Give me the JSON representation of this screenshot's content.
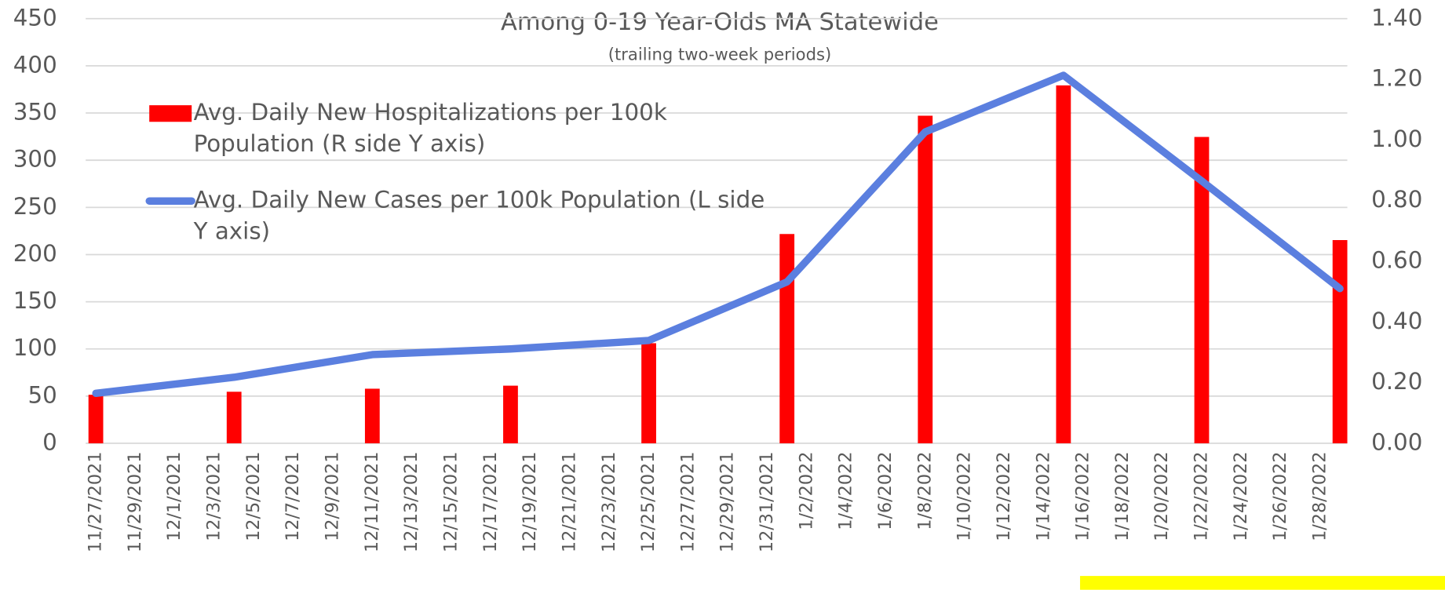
{
  "chart_data": {
    "type": "bar_line",
    "title": "Among 0-19 Year-Olds MA Statewide",
    "subtitle": "(trailing two-week periods)",
    "x": [
      "11/27/2021",
      "12/4/2021",
      "12/11/2021",
      "12/18/2021",
      "12/25/2021",
      "1/1/2022",
      "1/8/2022",
      "1/15/2022",
      "1/22/2022",
      "1/29/2022"
    ],
    "xticks": [
      "11/27/2021",
      "11/29/2021",
      "12/1/2021",
      "12/3/2021",
      "12/5/2021",
      "12/7/2021",
      "12/9/2021",
      "12/11/2021",
      "12/13/2021",
      "12/15/2021",
      "12/17/2021",
      "12/19/2021",
      "12/21/2021",
      "12/23/2021",
      "12/25/2021",
      "12/27/2021",
      "12/29/2021",
      "12/31/2021",
      "1/2/2022",
      "1/4/2022",
      "1/6/2022",
      "1/8/2022",
      "1/10/2022",
      "1/12/2022",
      "1/14/2022",
      "1/16/2022",
      "1/18/2022",
      "1/20/2022",
      "1/22/2022",
      "1/24/2022",
      "1/26/2022",
      "1/28/2022"
    ],
    "series": [
      {
        "name": "Avg. Daily New Hospitalizations per 100k Population (R side Y axis)",
        "kind": "bar",
        "axis": "y2",
        "color": "#ff0000",
        "values": [
          0.16,
          0.17,
          0.18,
          0.19,
          0.33,
          0.69,
          1.08,
          1.18,
          1.01,
          0.67
        ]
      },
      {
        "name": "Avg. Daily New Cases per 100k Population (L side Y axis)",
        "kind": "line",
        "axis": "y",
        "color": "#5b7fdf",
        "values": [
          53,
          70,
          94,
          100,
          109,
          171,
          330,
          390,
          278,
          164
        ]
      }
    ],
    "ylim": [
      0,
      450
    ],
    "yticks": [
      0,
      50,
      100,
      150,
      200,
      250,
      300,
      350,
      400,
      450
    ],
    "y2lim": [
      0,
      1.4
    ],
    "y2ticks": [
      {
        "value": 0,
        "label": "0.00"
      },
      {
        "value": 0.2,
        "label": "0.20"
      },
      {
        "value": 0.4,
        "label": "0.40"
      },
      {
        "value": 0.6,
        "label": "0.60"
      },
      {
        "value": 0.8,
        "label": "0.80"
      },
      {
        "value": 1.0,
        "label": "1.00"
      },
      {
        "value": 1.2,
        "label": "1.20"
      },
      {
        "value": 1.4,
        "label": "1.40"
      }
    ],
    "grid": true
  }
}
